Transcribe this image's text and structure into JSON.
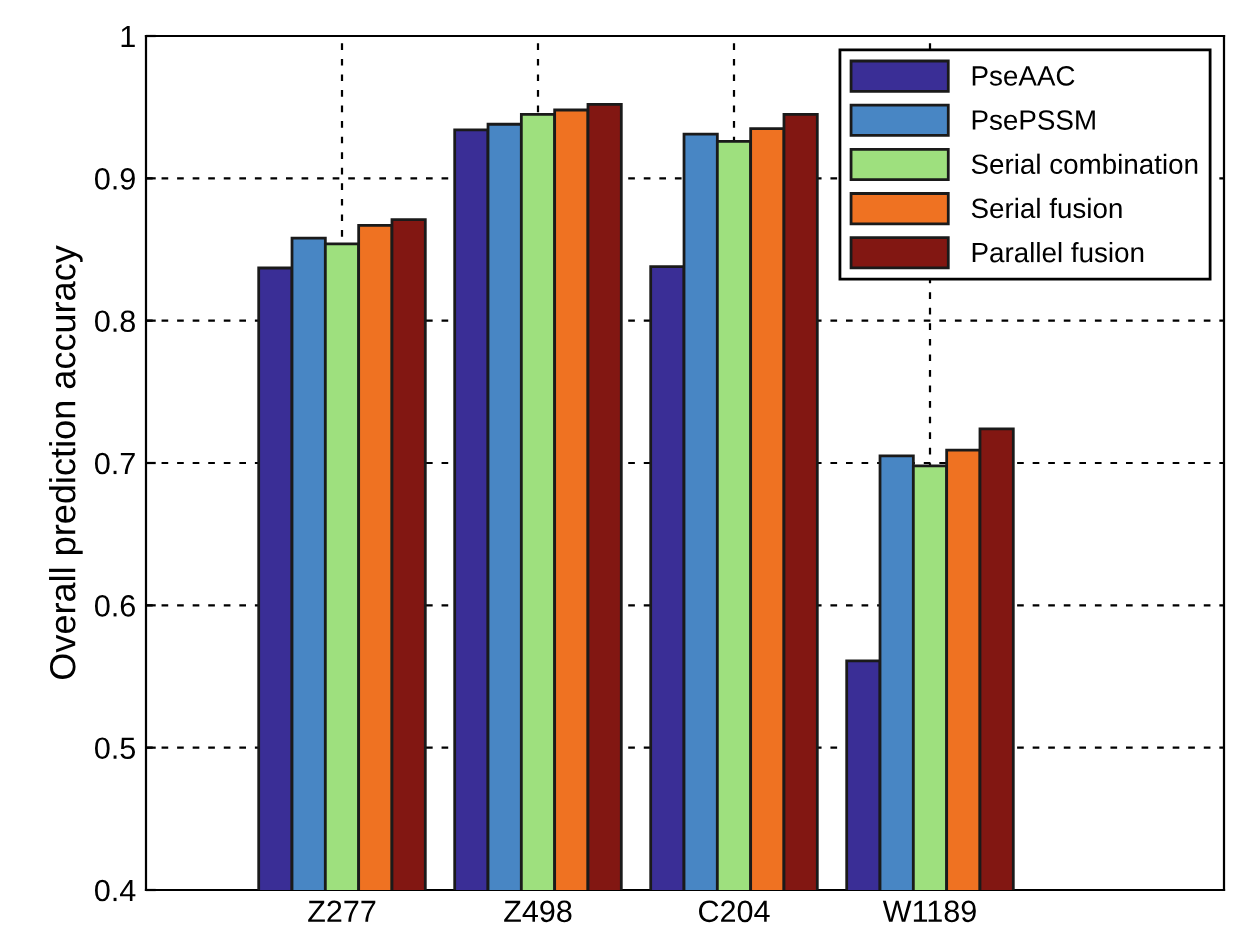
{
  "chart_data": {
    "type": "bar",
    "ylabel": "Overall prediction accuracy",
    "categories": [
      "Z277",
      "Z498",
      "C204",
      "W1189"
    ],
    "series": [
      {
        "name": "PseAAC",
        "color": "#3a2e96",
        "values": [
          0.837,
          0.934,
          0.838,
          0.561
        ]
      },
      {
        "name": "PsePSSM",
        "color": "#4886c4",
        "values": [
          0.858,
          0.938,
          0.931,
          0.705
        ]
      },
      {
        "name": "Serial combination",
        "color": "#9ee07e",
        "values": [
          0.854,
          0.945,
          0.926,
          0.698
        ]
      },
      {
        "name": "Serial fusion",
        "color": "#ef7222",
        "values": [
          0.867,
          0.948,
          0.935,
          0.709
        ]
      },
      {
        "name": "Parallel fusion",
        "color": "#821712",
        "values": [
          0.871,
          0.952,
          0.945,
          0.724
        ]
      }
    ],
    "ylim": [
      0.4,
      1
    ],
    "yticks": [
      0.4,
      0.5,
      0.6,
      0.7,
      0.8,
      0.9,
      {
        "value": 1,
        "label": "1"
      }
    ],
    "grid": true,
    "legend": "top right"
  }
}
